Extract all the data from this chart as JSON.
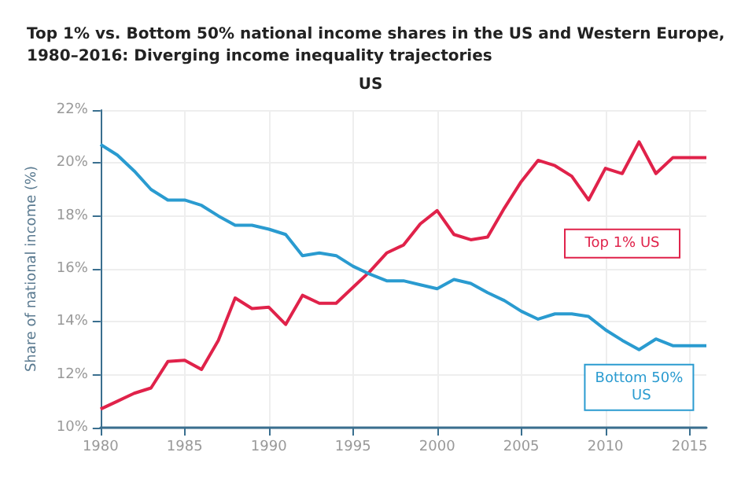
{
  "chart_data": {
    "type": "line",
    "title": "Top 1% vs. Bottom 50% national income shares in the US and Western Europe, 1980–2016: Diverging income inequality trajectories",
    "subtitle": "US",
    "ylabel": "Share of national income (%)",
    "x": [
      1980,
      1981,
      1982,
      1983,
      1984,
      1985,
      1986,
      1987,
      1988,
      1989,
      1990,
      1991,
      1992,
      1993,
      1994,
      1995,
      1996,
      1997,
      1998,
      1999,
      2000,
      2001,
      2002,
      2003,
      2004,
      2005,
      2006,
      2007,
      2008,
      2009,
      2010,
      2011,
      2012,
      2013,
      2014,
      2015,
      2016
    ],
    "series": [
      {
        "name": "Top 1% US",
        "color": "#e0224a",
        "values": [
          10.7,
          11.0,
          11.3,
          11.5,
          12.5,
          12.55,
          12.2,
          13.3,
          14.9,
          14.5,
          14.55,
          13.9,
          15.0,
          14.7,
          14.7,
          15.3,
          15.9,
          16.6,
          16.9,
          17.7,
          18.2,
          17.3,
          17.1,
          17.2,
          18.3,
          19.3,
          20.1,
          19.9,
          19.5,
          18.6,
          19.8,
          19.6,
          20.8,
          19.6,
          20.2,
          20.2,
          20.2
        ]
      },
      {
        "name": "Bottom 50% US",
        "color": "#2a9bd0",
        "values": [
          20.7,
          20.3,
          19.7,
          19.0,
          18.6,
          18.6,
          18.4,
          18.0,
          17.65,
          17.65,
          17.5,
          17.3,
          16.5,
          16.6,
          16.5,
          16.1,
          15.8,
          15.55,
          15.55,
          15.4,
          15.25,
          15.6,
          15.45,
          15.1,
          14.8,
          14.4,
          14.1,
          14.3,
          14.3,
          14.2,
          13.7,
          13.3,
          12.95,
          13.35,
          13.1,
          13.1,
          13.1
        ]
      }
    ],
    "xlim": [
      1980,
      2016
    ],
    "xticks": [
      1980,
      1985,
      1990,
      1995,
      2000,
      2005,
      2010,
      2015
    ],
    "ylim": [
      10,
      22
    ],
    "yticks": [
      {
        "value": 10,
        "label": "10%"
      },
      {
        "value": 12,
        "label": "12%"
      },
      {
        "value": 14,
        "label": "14%"
      },
      {
        "value": 16,
        "label": "16%"
      },
      {
        "value": 18,
        "label": "18%"
      },
      {
        "value": 20,
        "label": "20%"
      },
      {
        "value": 22,
        "label": "22%"
      }
    ],
    "grid": true,
    "legend": false,
    "marker": "none",
    "line_style": "solid"
  }
}
